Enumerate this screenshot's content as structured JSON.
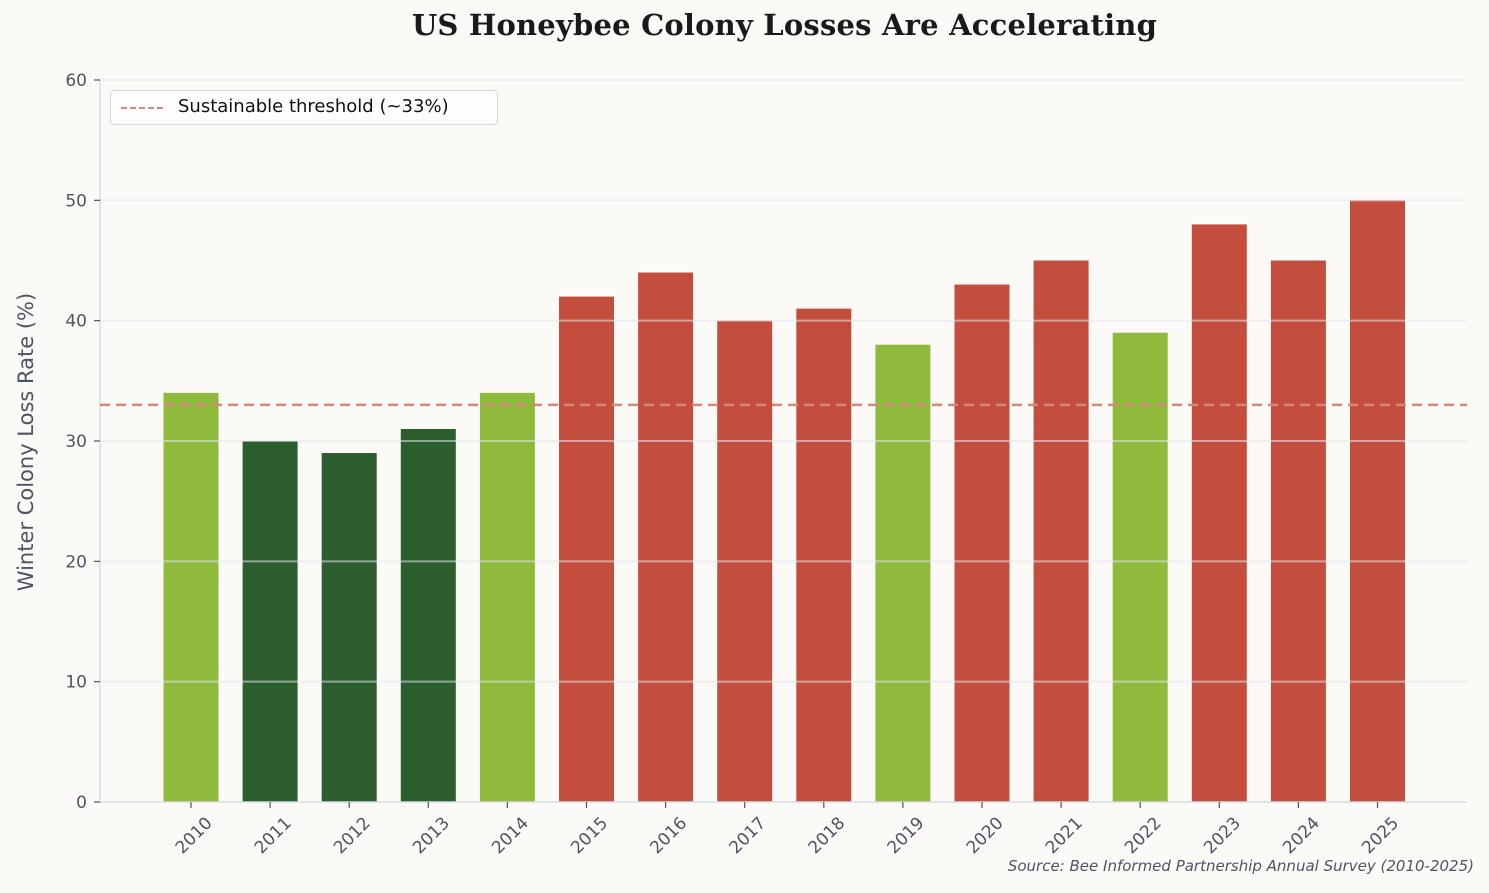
{
  "chart_data": {
    "type": "bar",
    "title": "US Honeybee Colony Losses Are Accelerating",
    "xlabel": "",
    "ylabel": "Winter Colony Loss Rate (%)",
    "ylim": [
      0,
      60
    ],
    "yticks": [
      0,
      10,
      20,
      30,
      40,
      50,
      60
    ],
    "grid": true,
    "categories": [
      "2010",
      "2011",
      "2012",
      "2013",
      "2014",
      "2015",
      "2016",
      "2017",
      "2018",
      "2019",
      "2020",
      "2021",
      "2022",
      "2023",
      "2024",
      "2025"
    ],
    "values": [
      34,
      30,
      29,
      31,
      34,
      42,
      44,
      40,
      41,
      38,
      43,
      45,
      39,
      48,
      45,
      50
    ],
    "bar_colors": [
      "#8fba3c",
      "#2c5e2e",
      "#2c5e2e",
      "#2c5e2e",
      "#8fba3c",
      "#c44e3d",
      "#c44e3d",
      "#c44e3d",
      "#c44e3d",
      "#8fba3c",
      "#c44e3d",
      "#c44e3d",
      "#8fba3c",
      "#c44e3d",
      "#c44e3d",
      "#c44e3d"
    ],
    "reference_line": {
      "value": 33,
      "label": "Sustainable threshold (~33%)",
      "color": "#d9867a",
      "style": "dashed"
    },
    "legend": {
      "position": "upper left",
      "entries": [
        "Sustainable threshold (~33%)"
      ]
    },
    "annotations": [
      "Source: Bee Informed Partnership Annual Survey (2010-2025)"
    ],
    "xtick_rotation": 45
  },
  "title": "US Honeybee Colony Losses Are Accelerating",
  "ylabel": "Winter Colony Loss Rate (%)",
  "legend_label": "Sustainable threshold (~33%)",
  "source": "Source: Bee Informed Partnership Annual Survey (2010-2025)",
  "colors": {
    "background": "#fbfaf7",
    "light_green": "#8fba3c",
    "dark_green": "#2c5e2e",
    "red": "#c44e3d",
    "threshold": "#d9867a",
    "axis_text": "#4a5566"
  }
}
